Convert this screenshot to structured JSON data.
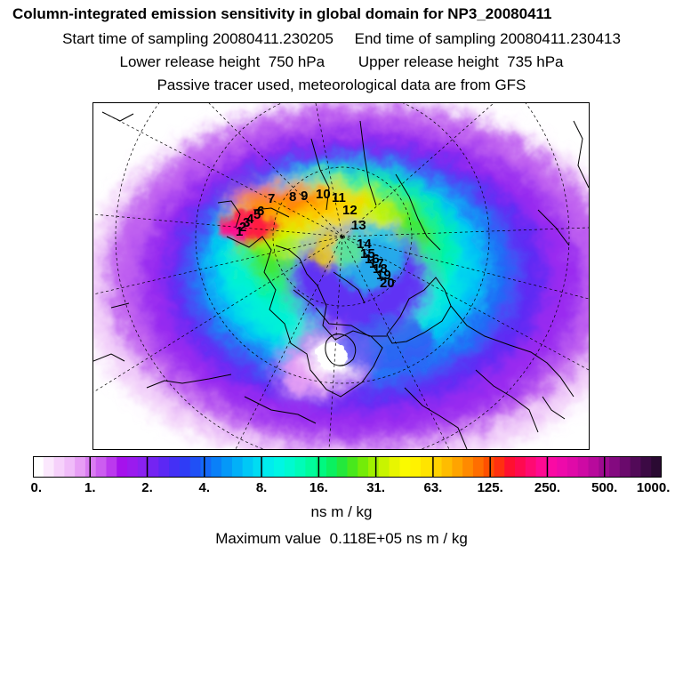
{
  "header": {
    "title": "Column-integrated emission sensitivity in global domain for NP3_20080411",
    "start_label": "Start time of sampling 20080411.230205",
    "end_label": "End time of sampling 20080411.230413",
    "lower_label": "Lower release height  750 hPa",
    "upper_label": "Upper release height  735 hPa",
    "tracer_label": "Passive tracer used, meteorological data are from GFS"
  },
  "map": {
    "projection": "north-polar-stereographic",
    "flight_labels": [
      "1",
      "2",
      "3",
      "4",
      "5",
      "6",
      "7",
      "8",
      "9",
      "10",
      "11",
      "12",
      "13",
      "14",
      "15",
      "16",
      "17",
      "18",
      "19",
      "20"
    ]
  },
  "colorbar": {
    "tick_labels": [
      "0.",
      "1.",
      "2.",
      "4.",
      "8.",
      "16.",
      "31.",
      "63.",
      "125.",
      "250.",
      "500.",
      "1000."
    ],
    "colors": [
      "#ffffff",
      "#fbe8fd",
      "#f6d1fb",
      "#f0bcf9",
      "#e79ef5",
      "#da7cf2",
      "#cc5df0",
      "#bb39ee",
      "#a512ec",
      "#9a1bee",
      "#8a21f0",
      "#7424f2",
      "#5c28f4",
      "#4430f5",
      "#2f3cf6",
      "#2050f6",
      "#1468f7",
      "#0a80f8",
      "#0598f8",
      "#02b0f8",
      "#00c8f6",
      "#00dcf2",
      "#00ecee",
      "#00f6e4",
      "#00fad0",
      "#00fcb8",
      "#00fc9c",
      "#00f880",
      "#0af060",
      "#24e83c",
      "#48e81c",
      "#74ec08",
      "#a0f000",
      "#c8f400",
      "#e8f600",
      "#fafa00",
      "#fff200",
      "#ffe400",
      "#ffd200",
      "#ffbc00",
      "#ffa400",
      "#ff8a00",
      "#ff6e00",
      "#ff5000",
      "#ff3010",
      "#ff1030",
      "#ff0a50",
      "#ff0a72",
      "#ff0a92",
      "#fa0aa4",
      "#ee0aaa",
      "#e00aa8",
      "#ce0aa4",
      "#b80a9c",
      "#9e0a90",
      "#840a80",
      "#6a0a6c",
      "#520a58",
      "#3c0a44",
      "#2a0a32"
    ],
    "unit": "ns m / kg"
  },
  "max_value_label": "Maximum value  0.118E+05 ns m / kg"
}
